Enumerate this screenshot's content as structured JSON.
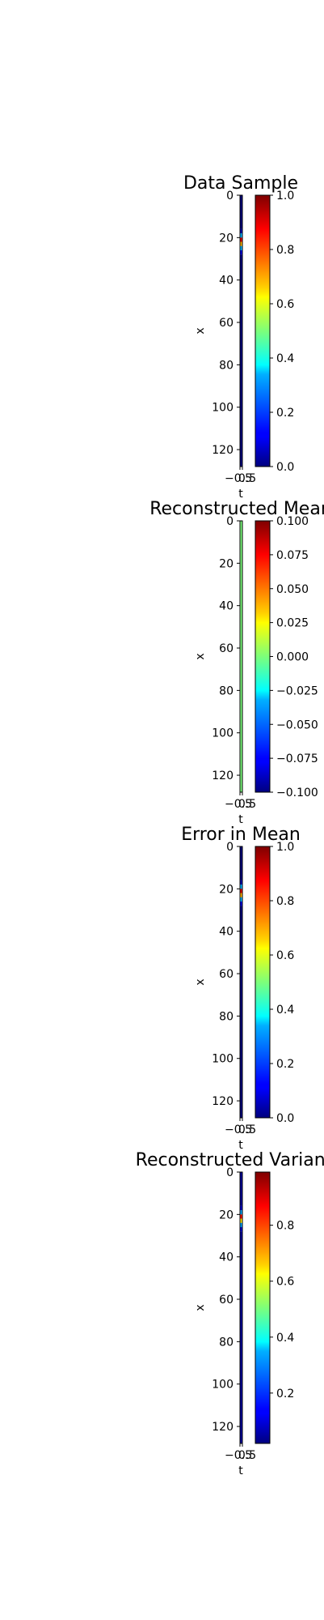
{
  "figure": {
    "panels": [
      {
        "title": "Data Sample",
        "xlabel": "t",
        "ylabel": "x",
        "y_ticks": [
          "0",
          "20",
          "40",
          "60",
          "80",
          "100",
          "120"
        ],
        "x_tick_overlap": "−0.5",
        "x_tick_overlap_b": "0.5",
        "colorbar_ticks": [
          "0.0",
          "0.2",
          "0.4",
          "0.6",
          "0.8",
          "1.0"
        ]
      },
      {
        "title": "Reconstructed Mean",
        "xlabel": "t",
        "ylabel": "x",
        "y_ticks": [
          "0",
          "20",
          "40",
          "60",
          "80",
          "100",
          "120"
        ],
        "x_tick_overlap": "−0.5",
        "x_tick_overlap_b": "0.5",
        "colorbar_ticks": [
          "0.100",
          "0.075",
          "0.050",
          "0.025",
          "0.000",
          "−0.025",
          "−0.050",
          "−0.075",
          "−0.100"
        ]
      },
      {
        "title": "Error in Mean",
        "xlabel": "t",
        "ylabel": "x",
        "y_ticks": [
          "0",
          "20",
          "40",
          "60",
          "80",
          "100",
          "120"
        ],
        "x_tick_overlap": "−0.5",
        "x_tick_overlap_b": "0.5",
        "colorbar_ticks": [
          "0.0",
          "0.2",
          "0.4",
          "0.6",
          "0.8",
          "1.0"
        ]
      },
      {
        "title": "Reconstructed Variance",
        "xlabel": "t",
        "ylabel": "x",
        "y_ticks": [
          "0",
          "20",
          "40",
          "60",
          "80",
          "100",
          "120"
        ],
        "x_tick_overlap": "−0.5",
        "x_tick_overlap_b": "0.5",
        "colorbar_ticks": [
          "0.2",
          "0.4",
          "0.6",
          "0.8"
        ]
      }
    ]
  },
  "chart_data": [
    {
      "type": "heatmap",
      "title": "Data Sample",
      "xlabel": "t",
      "ylabel": "x",
      "xlim": [
        -0.5,
        0.5
      ],
      "ylim": [
        128,
        0
      ],
      "colormap": "jet",
      "clim": [
        0.0,
        1.0
      ],
      "colorbar_ticks": [
        0.0,
        0.2,
        0.4,
        0.6,
        0.8,
        1.0
      ],
      "column": {
        "x": [
          0
        ],
        "y": [
          0,
          16,
          18,
          20,
          22,
          24,
          26,
          28,
          30,
          128
        ],
        "values": [
          0.0,
          0.05,
          0.3,
          0.9,
          0.7,
          0.3,
          0.1,
          0.02,
          0.0,
          0.0
        ]
      }
    },
    {
      "type": "heatmap",
      "title": "Reconstructed Mean",
      "xlabel": "t",
      "ylabel": "x",
      "xlim": [
        -0.5,
        0.5
      ],
      "ylim": [
        128,
        0
      ],
      "colormap": "jet",
      "clim": [
        -0.1,
        0.1
      ],
      "colorbar_ticks": [
        0.1,
        0.075,
        0.05,
        0.025,
        0.0,
        -0.025,
        -0.05,
        -0.075,
        -0.1
      ],
      "column": {
        "x": [
          0
        ],
        "y": [
          0,
          128
        ],
        "values": [
          0.0,
          0.0
        ]
      }
    },
    {
      "type": "heatmap",
      "title": "Error in Mean",
      "xlabel": "t",
      "ylabel": "x",
      "xlim": [
        -0.5,
        0.5
      ],
      "ylim": [
        128,
        0
      ],
      "colormap": "jet",
      "clim": [
        0.0,
        1.0
      ],
      "colorbar_ticks": [
        0.0,
        0.2,
        0.4,
        0.6,
        0.8,
        1.0
      ],
      "column": {
        "x": [
          0
        ],
        "y": [
          0,
          16,
          18,
          20,
          22,
          24,
          26,
          28,
          30,
          128
        ],
        "values": [
          0.0,
          0.05,
          0.3,
          0.9,
          0.7,
          0.3,
          0.1,
          0.02,
          0.0,
          0.0
        ]
      }
    },
    {
      "type": "heatmap",
      "title": "Reconstructed Variance",
      "xlabel": "t",
      "ylabel": "x",
      "xlim": [
        -0.5,
        0.5
      ],
      "ylim": [
        128,
        0
      ],
      "colormap": "jet",
      "clim": [
        0.02,
        0.99
      ],
      "colorbar_ticks": [
        0.2,
        0.4,
        0.6,
        0.8
      ],
      "column": {
        "x": [
          0
        ],
        "y": [
          0,
          16,
          18,
          20,
          22,
          24,
          26,
          28,
          30,
          128
        ],
        "values": [
          0.05,
          0.1,
          0.3,
          0.85,
          0.65,
          0.3,
          0.1,
          0.05,
          0.05,
          0.05
        ]
      }
    }
  ]
}
